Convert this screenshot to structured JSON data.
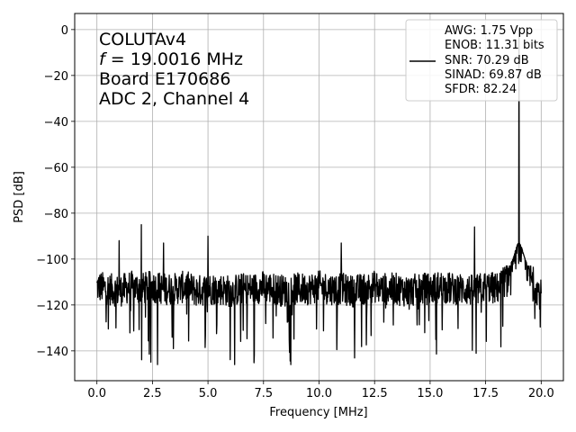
{
  "chart_data": {
    "type": "line",
    "title": "",
    "xlabel": "Frequency [MHz]",
    "ylabel": "PSD [dB]",
    "xlim": [
      -1.0,
      21.0
    ],
    "ylim": [
      -153,
      7
    ],
    "xticks": [
      0.0,
      2.5,
      5.0,
      7.5,
      10.0,
      12.5,
      15.0,
      17.5,
      20.0
    ],
    "xtick_labels": [
      "0.0",
      "2.5",
      "5.0",
      "7.5",
      "10.0",
      "12.5",
      "15.0",
      "17.5",
      "20.0"
    ],
    "yticks": [
      0,
      -20,
      -40,
      -60,
      -80,
      -100,
      -120,
      -140
    ],
    "ytick_labels": [
      "0",
      "−20",
      "−40",
      "−60",
      "−80",
      "−100",
      "−120",
      "−140"
    ],
    "grid": true,
    "annotation_lines": [
      "COLUTAv4",
      "= 19.0016 MHz",
      "Board E170686",
      "ADC 2, Channel 4"
    ],
    "annotation_italic_symbol": "f",
    "legend": {
      "placement": "top-right",
      "lines": [
        "AWG: 1.75 Vpp",
        "ENOB: 11.31 bits",
        "SNR: 70.29 dB",
        "SINAD: 69.87 dB",
        "SFDR: 82.24"
      ]
    },
    "series": [
      {
        "color": "#000000",
        "noise_floor_db": -113,
        "noise_range_db": [
          -146,
          -103
        ],
        "x": [
          0.0,
          0.5,
          1.0,
          1.5,
          2.0,
          2.5,
          3.0,
          3.5,
          4.0,
          4.5,
          5.0,
          5.5,
          6.0,
          6.5,
          7.0,
          7.5,
          8.0,
          8.5,
          9.0,
          9.5,
          10.0,
          10.5,
          11.0,
          11.5,
          12.0,
          12.5,
          13.0,
          13.5,
          14.0,
          14.5,
          15.0,
          15.5,
          16.0,
          16.5,
          17.0,
          17.5,
          18.0,
          18.5,
          18.8,
          19.0,
          19.2,
          19.5,
          20.0
        ],
        "y": [
          -112,
          -113,
          -114,
          -112,
          -113,
          -112,
          -113,
          -113,
          -112,
          -114,
          -113,
          -113,
          -114,
          -113,
          -113,
          -112,
          -113,
          -114,
          -113,
          -113,
          -112,
          -113,
          -113,
          -114,
          -113,
          -112,
          -113,
          -113,
          -114,
          -113,
          -113,
          -112,
          -113,
          -113,
          -114,
          -112,
          -113,
          -108,
          -98,
          0,
          -100,
          -108,
          -116
        ]
      }
    ],
    "spurs": [
      {
        "x": 1.0,
        "y": -92
      },
      {
        "x": 2.0,
        "y": -85
      },
      {
        "x": 3.0,
        "y": -93
      },
      {
        "x": 5.0,
        "y": -90
      },
      {
        "x": 11.0,
        "y": -93
      },
      {
        "x": 17.0,
        "y": -86
      },
      {
        "x": 19.0,
        "y": 0
      }
    ]
  }
}
